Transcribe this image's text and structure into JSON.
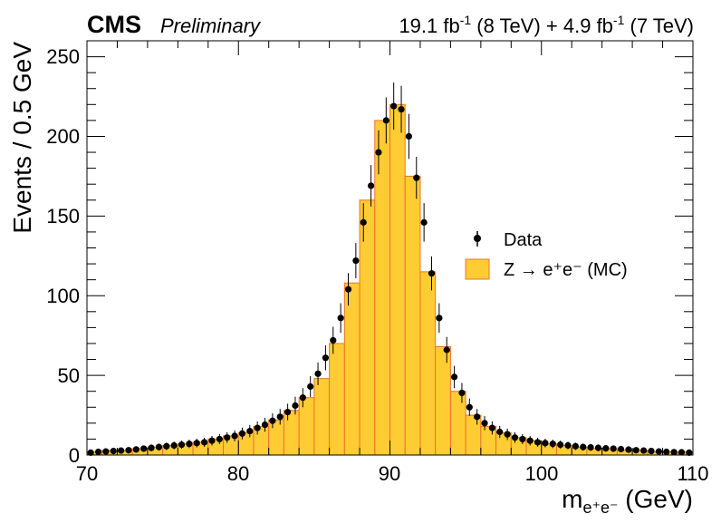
{
  "header": {
    "experiment": "CMS",
    "status": "Preliminary",
    "lumi_8": "19.1 fb",
    "lumi_8_exp": "-1",
    "lumi_8_energy": " (8 TeV) + 4.9 fb",
    "lumi_7_exp": "-1",
    "lumi_7_energy": " (7 TeV)"
  },
  "chart_data": {
    "type": "histogram",
    "xlabel_main": "m",
    "xlabel_sub": "e⁺e⁻",
    "xlabel_unit": " (GeV)",
    "ylabel": "Events / 0.5 GeV",
    "xlim": [
      70,
      110
    ],
    "ylim": [
      0,
      260
    ],
    "bin_width": 1.0,
    "x_ticks": [
      "70",
      "80",
      "90",
      "100",
      "110"
    ],
    "y_ticks": [
      "0",
      "50",
      "100",
      "150",
      "200",
      "250"
    ],
    "legend": {
      "data_label": "Data",
      "mc_label": "Z → e⁺e⁻ (MC)"
    },
    "colors": {
      "mc_fill": "#ffcc33",
      "mc_line": "#e8742c",
      "data_marker": "#000000"
    },
    "mc_bins": {
      "x_low": [
        70,
        71,
        72,
        73,
        74,
        75,
        76,
        77,
        78,
        79,
        80,
        81,
        82,
        83,
        84,
        85,
        86,
        87,
        88,
        89,
        90,
        91,
        92,
        93,
        94,
        95,
        96,
        97,
        98,
        99,
        100,
        101,
        102,
        103,
        104,
        105,
        106,
        107,
        108,
        109
      ],
      "values": [
        2,
        3,
        3,
        4,
        5,
        6,
        7,
        8,
        10,
        12,
        14,
        18,
        22,
        28,
        36,
        48,
        70,
        108,
        160,
        210,
        220,
        175,
        115,
        68,
        40,
        25,
        18,
        14,
        11,
        9,
        7,
        6,
        5,
        4,
        4,
        3,
        3,
        2,
        2,
        2
      ]
    },
    "data_points": {
      "x": [
        70.25,
        70.75,
        71.25,
        71.75,
        72.25,
        72.75,
        73.25,
        73.75,
        74.25,
        74.75,
        75.25,
        75.75,
        76.25,
        76.75,
        77.25,
        77.75,
        78.25,
        78.75,
        79.25,
        79.75,
        80.25,
        80.75,
        81.25,
        81.75,
        82.25,
        82.75,
        83.25,
        83.75,
        84.25,
        84.75,
        85.25,
        85.75,
        86.25,
        86.75,
        87.25,
        87.75,
        88.25,
        88.75,
        89.25,
        89.75,
        90.25,
        90.75,
        91.25,
        91.75,
        92.25,
        92.75,
        93.25,
        93.75,
        94.25,
        94.75,
        95.25,
        95.75,
        96.25,
        96.75,
        97.25,
        97.75,
        98.25,
        98.75,
        99.25,
        99.75,
        100.25,
        100.75,
        101.25,
        101.75,
        102.25,
        102.75,
        103.25,
        103.75,
        104.25,
        104.75,
        105.25,
        105.75,
        106.25,
        106.75,
        107.25,
        107.75,
        108.25,
        108.75,
        109.25,
        109.75
      ],
      "y": [
        1.5,
        2,
        2.2,
        2.5,
        2.8,
        3,
        3.5,
        4,
        4.5,
        5,
        5.5,
        6,
        6.5,
        7,
        7.5,
        8,
        9,
        10,
        11,
        12,
        13.5,
        15,
        17,
        19,
        21.5,
        24,
        27,
        31,
        36,
        43,
        51,
        61,
        72,
        86,
        104,
        122,
        146,
        169,
        190,
        210,
        219,
        217,
        200,
        174,
        146,
        114,
        86,
        66,
        49,
        39,
        30,
        24,
        20,
        17,
        14.5,
        13,
        11,
        10,
        9,
        8,
        7.5,
        7,
        6.5,
        6,
        5.5,
        5,
        4.8,
        4.5,
        4.2,
        4,
        3.7,
        3.4,
        3,
        2.8,
        2.5,
        2.2,
        2,
        1.8,
        1.7,
        1.5
      ]
    }
  }
}
